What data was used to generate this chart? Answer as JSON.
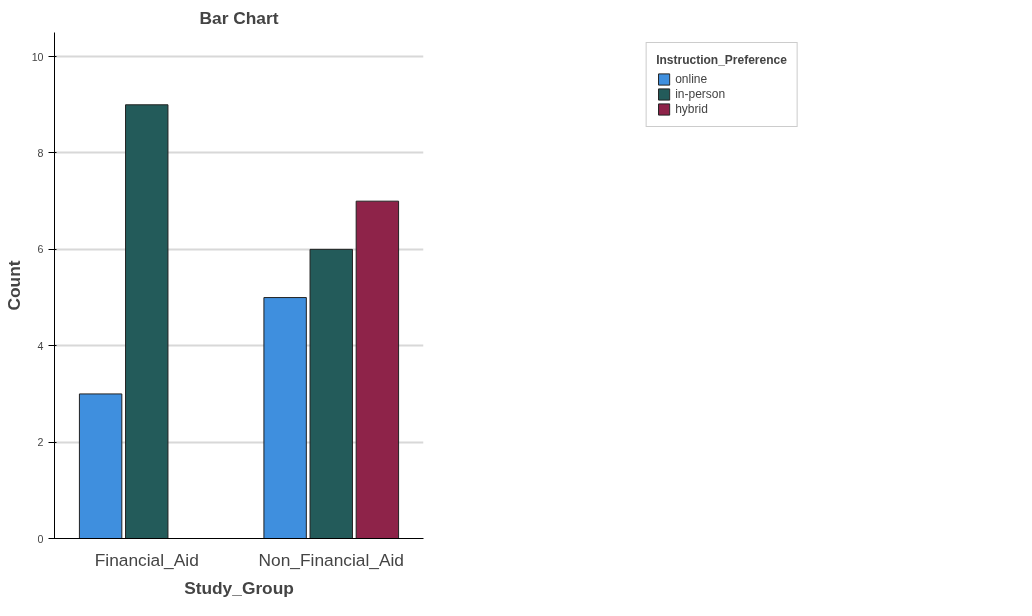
{
  "chart_data": {
    "type": "bar",
    "title": "Bar Chart",
    "xlabel": "Study_Group",
    "ylabel": "Count",
    "legend_title": "Instruction_Preference",
    "categories": [
      "Financial_Aid",
      "Non_Financial_Aid"
    ],
    "series": [
      {
        "name": "online",
        "color": "#3f8fde",
        "values": [
          3,
          5
        ]
      },
      {
        "name": "in-person",
        "color": "#235b5a",
        "values": [
          9,
          6
        ]
      },
      {
        "name": "hybrid",
        "color": "#8e2349",
        "values": [
          null,
          7
        ]
      }
    ],
    "ylim": [
      0,
      10.5
    ],
    "yticks": [
      0,
      2,
      4,
      6,
      8,
      10
    ],
    "grid": "y",
    "legend": "top right"
  }
}
